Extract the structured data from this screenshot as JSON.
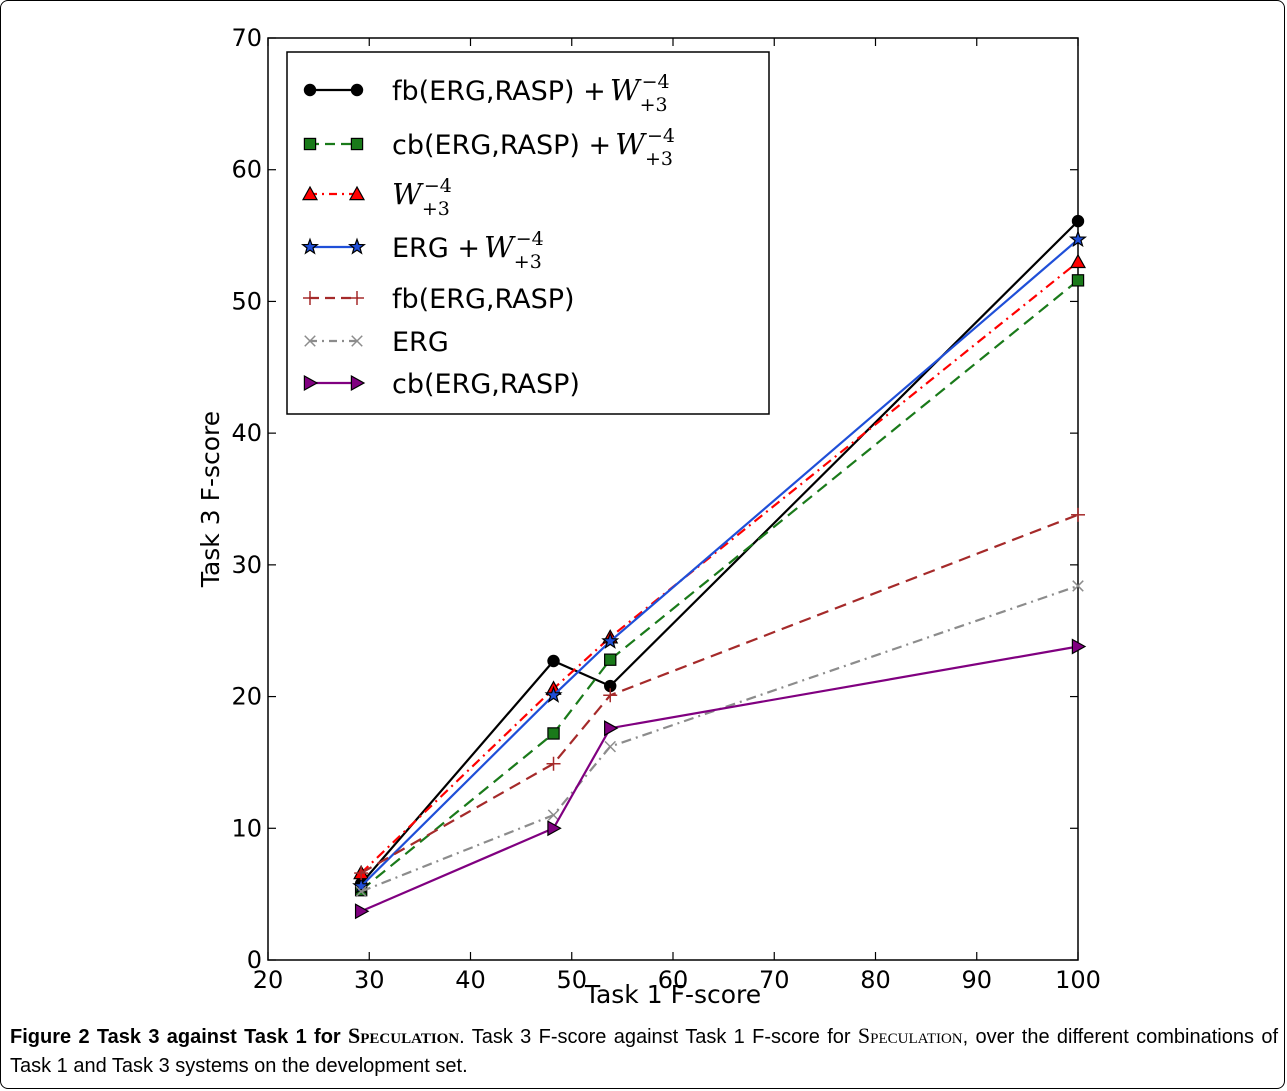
{
  "chart_data": {
    "type": "line",
    "xlabel": "Task 1 F-score",
    "ylabel": "Task 3 F-score",
    "xlim": [
      20,
      100
    ],
    "ylim": [
      0,
      70
    ],
    "xticks": [
      20,
      30,
      40,
      50,
      60,
      70,
      80,
      90,
      100
    ],
    "yticks": [
      0,
      10,
      20,
      30,
      40,
      50,
      60,
      70
    ],
    "grid": false,
    "legend_position": "top-left",
    "x": [
      29.2,
      48.2,
      53.8,
      100
    ],
    "series": [
      {
        "name": "fb(ERG,RASP) + ",
        "math": {
          "base": "W",
          "sup": "−4",
          "sub": "+3"
        },
        "values": [
          5.8,
          22.7,
          20.8,
          56.1
        ],
        "color": "#000000",
        "dash": "solid",
        "marker": "circle"
      },
      {
        "name": "cb(ERG,RASP) + ",
        "math": {
          "base": "W",
          "sup": "−4",
          "sub": "+3"
        },
        "values": [
          5.3,
          17.2,
          22.8,
          51.6
        ],
        "color": "#1a7a1a",
        "dash": "dashed",
        "marker": "square"
      },
      {
        "name": "",
        "math": {
          "base": "W",
          "sup": "−4",
          "sub": "+3"
        },
        "values": [
          6.6,
          20.6,
          24.5,
          53.0
        ],
        "color": "#ff0000",
        "dash": "dashdot",
        "marker": "triangle-up"
      },
      {
        "name": "ERG + ",
        "math": {
          "base": "W",
          "sup": "−4",
          "sub": "+3"
        },
        "values": [
          5.6,
          20.1,
          24.2,
          54.7
        ],
        "color": "#1f4fd8",
        "dash": "solid",
        "marker": "star"
      },
      {
        "name": "fb(ERG,RASP)",
        "values": [
          6.6,
          14.9,
          20.1,
          33.8
        ],
        "color": "#a52a2a",
        "dash": "dashed",
        "marker": "plus"
      },
      {
        "name": "ERG",
        "values": [
          5.2,
          11.0,
          16.2,
          28.4
        ],
        "color": "#8c8c8c",
        "dash": "dashdot",
        "marker": "x"
      },
      {
        "name": "cb(ERG,RASP)",
        "values": [
          3.7,
          10.0,
          17.6,
          23.8
        ],
        "color": "#800080",
        "dash": "solid",
        "marker": "triangle-right"
      }
    ]
  },
  "caption": {
    "label": "Figure 2 Task 3 against Task 1 for ",
    "label_sc": "Speculation",
    "text_1": ". Task 3 F-score against Task 1 F-score for ",
    "text_sc": "Speculation",
    "text_2": ", over the different combinations of Task 1 and Task 3 systems on the development set."
  }
}
